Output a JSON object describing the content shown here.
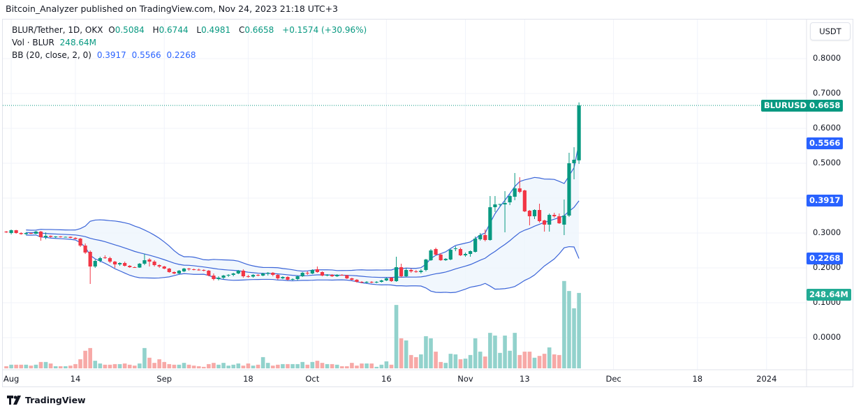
{
  "header": {
    "published": "Bitcoin_Analyzer published on TradingView.com, Nov 24, 2023 21:18 UTC+3"
  },
  "legend": {
    "symbol": "BLUR/Tether, 1D, OKX",
    "open_label": "O",
    "open": "0.5084",
    "high_label": "H",
    "high": "0.6744",
    "low_label": "L",
    "low": "0.4981",
    "close_label": "C",
    "close": "0.6658",
    "change": "+0.1574 (+30.96%)",
    "vol_label": "Vol · BLUR",
    "vol": "248.64M",
    "bb_label": "BB (20, close, 2, 0)",
    "bb_basis": "0.3917",
    "bb_upper": "0.5566",
    "bb_lower": "0.2268"
  },
  "price_axis": {
    "currency": "USDT",
    "ticks": [
      "0.8000",
      "0.7000",
      "0.6000",
      "0.5000",
      "0.3000",
      "0.2000",
      "0.1000",
      "0.0000"
    ],
    "tick_values": [
      0.8,
      0.7,
      0.6,
      0.5,
      0.3,
      0.2,
      0.1,
      0.0
    ],
    "last_price_symbol": "BLURUSDT",
    "last_price": "0.6658",
    "bb_upper_tag": "0.5566",
    "bb_basis_tag": "0.3917",
    "bb_lower_tag": "0.2268",
    "volume_tag": "248.64M"
  },
  "time_axis": {
    "ticks": [
      {
        "label": "Aug",
        "date": "2023-08-01"
      },
      {
        "label": "14",
        "date": "2023-08-14"
      },
      {
        "label": "Sep",
        "date": "2023-09-01"
      },
      {
        "label": "18",
        "date": "2023-09-18"
      },
      {
        "label": "Oct",
        "date": "2023-10-01"
      },
      {
        "label": "16",
        "date": "2023-10-16"
      },
      {
        "label": "Nov",
        "date": "2023-11-01"
      },
      {
        "label": "13",
        "date": "2023-11-13"
      },
      {
        "label": "Dec",
        "date": "2023-12-01"
      },
      {
        "label": "18",
        "date": "2023-12-18"
      },
      {
        "label": "2024",
        "date": "2024-01-01"
      }
    ]
  },
  "colors": {
    "up": "#089981",
    "down": "#f23645",
    "vol_up": "#92d2cc",
    "vol_down": "#f7a9a7",
    "bb_line": "#3a64d8",
    "bb_fill": "#eef5fd",
    "last_price_tag": "#089981",
    "bb_tag": "#2962ff",
    "volume_tag": "#22ab94"
  },
  "footer": {
    "brand": "TradingView"
  },
  "chart_data": {
    "type": "candlestick",
    "symbol": "BLUR/Tether, 1D, OKX",
    "ylim": [
      0.0,
      0.8
    ],
    "volume_unit": "M",
    "indicators": [
      {
        "name": "BB (20, close, 2, 0)",
        "last": {
          "basis": 0.3917,
          "upper": 0.5566,
          "lower": 0.2268
        }
      }
    ],
    "columns": [
      "date",
      "open",
      "high",
      "low",
      "close",
      "volume"
    ],
    "candles": [
      [
        "2023-07-31",
        0.304,
        0.306,
        0.3,
        0.302,
        7
      ],
      [
        "2023-08-01",
        0.3,
        0.31,
        0.296,
        0.308,
        12
      ],
      [
        "2023-08-02",
        0.308,
        0.309,
        0.298,
        0.3,
        12
      ],
      [
        "2023-08-03",
        0.3,
        0.302,
        0.295,
        0.297,
        12
      ],
      [
        "2023-08-04",
        0.297,
        0.302,
        0.295,
        0.3,
        12
      ],
      [
        "2023-08-05",
        0.3,
        0.301,
        0.297,
        0.298,
        9
      ],
      [
        "2023-08-06",
        0.298,
        0.306,
        0.297,
        0.304,
        12
      ],
      [
        "2023-08-07",
        0.304,
        0.306,
        0.278,
        0.288,
        21
      ],
      [
        "2023-08-08",
        0.288,
        0.302,
        0.282,
        0.292,
        21
      ],
      [
        "2023-08-09",
        0.292,
        0.293,
        0.287,
        0.289,
        16
      ],
      [
        "2023-08-10",
        0.289,
        0.291,
        0.286,
        0.29,
        7
      ],
      [
        "2023-08-11",
        0.29,
        0.291,
        0.287,
        0.289,
        7
      ],
      [
        "2023-08-12",
        0.289,
        0.29,
        0.287,
        0.289,
        7
      ],
      [
        "2023-08-13",
        0.289,
        0.29,
        0.285,
        0.286,
        9
      ],
      [
        "2023-08-14",
        0.286,
        0.288,
        0.282,
        0.283,
        14
      ],
      [
        "2023-08-15",
        0.284,
        0.286,
        0.26,
        0.264,
        30
      ],
      [
        "2023-08-16",
        0.264,
        0.27,
        0.24,
        0.244,
        58
      ],
      [
        "2023-08-17",
        0.246,
        0.25,
        0.154,
        0.204,
        67
      ],
      [
        "2023-08-18",
        0.204,
        0.224,
        0.2,
        0.22,
        25
      ],
      [
        "2023-08-19",
        0.22,
        0.232,
        0.216,
        0.228,
        16
      ],
      [
        "2023-08-20",
        0.23,
        0.236,
        0.226,
        0.228,
        12
      ],
      [
        "2023-08-21",
        0.228,
        0.232,
        0.214,
        0.218,
        12
      ],
      [
        "2023-08-22",
        0.218,
        0.22,
        0.2,
        0.21,
        14
      ],
      [
        "2023-08-23",
        0.21,
        0.216,
        0.206,
        0.214,
        14
      ],
      [
        "2023-08-24",
        0.214,
        0.218,
        0.204,
        0.206,
        16
      ],
      [
        "2023-08-25",
        0.206,
        0.208,
        0.2,
        0.202,
        12
      ],
      [
        "2023-08-26",
        0.202,
        0.204,
        0.2,
        0.201,
        9
      ],
      [
        "2023-08-27",
        0.201,
        0.214,
        0.2,
        0.212,
        16
      ],
      [
        "2023-08-28",
        0.212,
        0.24,
        0.208,
        0.222,
        67
      ],
      [
        "2023-08-29",
        0.224,
        0.228,
        0.204,
        0.218,
        35
      ],
      [
        "2023-08-30",
        0.218,
        0.222,
        0.204,
        0.208,
        18
      ],
      [
        "2023-08-31",
        0.208,
        0.21,
        0.2,
        0.204,
        30
      ],
      [
        "2023-09-01",
        0.204,
        0.206,
        0.196,
        0.198,
        21
      ],
      [
        "2023-09-02",
        0.198,
        0.2,
        0.186,
        0.188,
        14
      ],
      [
        "2023-09-03",
        0.188,
        0.19,
        0.182,
        0.184,
        12
      ],
      [
        "2023-09-04",
        0.184,
        0.194,
        0.182,
        0.192,
        12
      ],
      [
        "2023-09-05",
        0.19,
        0.2,
        0.188,
        0.198,
        18
      ],
      [
        "2023-09-06",
        0.198,
        0.2,
        0.192,
        0.196,
        12
      ],
      [
        "2023-09-07",
        0.196,
        0.198,
        0.193,
        0.195,
        9
      ],
      [
        "2023-09-08",
        0.195,
        0.198,
        0.192,
        0.194,
        7
      ],
      [
        "2023-09-09",
        0.194,
        0.196,
        0.19,
        0.192,
        5
      ],
      [
        "2023-09-10",
        0.192,
        0.194,
        0.176,
        0.178,
        14
      ],
      [
        "2023-09-11",
        0.178,
        0.184,
        0.164,
        0.168,
        18
      ],
      [
        "2023-09-12",
        0.168,
        0.176,
        0.164,
        0.172,
        12
      ],
      [
        "2023-09-13",
        0.172,
        0.18,
        0.168,
        0.178,
        18
      ],
      [
        "2023-09-14",
        0.178,
        0.182,
        0.174,
        0.18,
        9
      ],
      [
        "2023-09-15",
        0.18,
        0.186,
        0.176,
        0.184,
        12
      ],
      [
        "2023-09-16",
        0.184,
        0.194,
        0.182,
        0.192,
        16
      ],
      [
        "2023-09-17",
        0.192,
        0.196,
        0.172,
        0.176,
        9
      ],
      [
        "2023-09-18",
        0.176,
        0.18,
        0.172,
        0.175,
        16
      ],
      [
        "2023-09-19",
        0.175,
        0.182,
        0.172,
        0.18,
        9
      ],
      [
        "2023-09-20",
        0.18,
        0.182,
        0.176,
        0.178,
        12
      ],
      [
        "2023-09-21",
        0.178,
        0.186,
        0.176,
        0.184,
        37
      ],
      [
        "2023-09-22",
        0.184,
        0.188,
        0.178,
        0.186,
        18
      ],
      [
        "2023-09-23",
        0.186,
        0.188,
        0.176,
        0.18,
        9
      ],
      [
        "2023-09-24",
        0.18,
        0.182,
        0.166,
        0.17,
        12
      ],
      [
        "2023-09-25",
        0.17,
        0.176,
        0.168,
        0.174,
        14
      ],
      [
        "2023-09-26",
        0.174,
        0.176,
        0.164,
        0.166,
        14
      ],
      [
        "2023-09-27",
        0.166,
        0.17,
        0.164,
        0.168,
        14
      ],
      [
        "2023-09-28",
        0.168,
        0.178,
        0.164,
        0.176,
        14
      ],
      [
        "2023-09-29",
        0.176,
        0.188,
        0.174,
        0.186,
        21
      ],
      [
        "2023-09-30",
        0.186,
        0.19,
        0.18,
        0.184,
        12
      ],
      [
        "2023-10-01",
        0.184,
        0.196,
        0.182,
        0.194,
        21
      ],
      [
        "2023-10-02",
        0.196,
        0.204,
        0.186,
        0.188,
        25
      ],
      [
        "2023-10-03",
        0.188,
        0.19,
        0.176,
        0.178,
        18
      ],
      [
        "2023-10-04",
        0.178,
        0.182,
        0.176,
        0.18,
        14
      ],
      [
        "2023-10-05",
        0.18,
        0.182,
        0.174,
        0.176,
        14
      ],
      [
        "2023-10-06",
        0.176,
        0.182,
        0.174,
        0.18,
        12
      ],
      [
        "2023-10-07",
        0.18,
        0.182,
        0.178,
        0.179,
        7
      ],
      [
        "2023-10-08",
        0.179,
        0.18,
        0.168,
        0.17,
        7
      ],
      [
        "2023-10-09",
        0.17,
        0.172,
        0.164,
        0.166,
        18
      ],
      [
        "2023-10-10",
        0.166,
        0.168,
        0.158,
        0.16,
        9
      ],
      [
        "2023-10-11",
        0.16,
        0.162,
        0.156,
        0.158,
        16
      ],
      [
        "2023-10-12",
        0.158,
        0.162,
        0.156,
        0.16,
        16
      ],
      [
        "2023-10-13",
        0.16,
        0.162,
        0.156,
        0.159,
        16
      ],
      [
        "2023-10-14",
        0.159,
        0.162,
        0.156,
        0.16,
        5
      ],
      [
        "2023-10-15",
        0.16,
        0.166,
        0.158,
        0.164,
        12
      ],
      [
        "2023-10-16",
        0.164,
        0.172,
        0.162,
        0.17,
        23
      ],
      [
        "2023-10-17",
        0.172,
        0.174,
        0.16,
        0.162,
        12
      ],
      [
        "2023-10-18",
        0.162,
        0.232,
        0.16,
        0.202,
        209
      ],
      [
        "2023-10-19",
        0.202,
        0.212,
        0.172,
        0.176,
        99
      ],
      [
        "2023-10-20",
        0.176,
        0.2,
        0.174,
        0.194,
        92
      ],
      [
        "2023-10-21",
        0.194,
        0.198,
        0.186,
        0.19,
        44
      ],
      [
        "2023-10-22",
        0.19,
        0.194,
        0.186,
        0.188,
        37
      ],
      [
        "2023-10-23",
        0.188,
        0.196,
        0.184,
        0.192,
        46
      ],
      [
        "2023-10-24",
        0.194,
        0.226,
        0.19,
        0.224,
        106
      ],
      [
        "2023-10-25",
        0.222,
        0.254,
        0.22,
        0.25,
        99
      ],
      [
        "2023-10-26",
        0.254,
        0.258,
        0.236,
        0.238,
        55
      ],
      [
        "2023-10-27",
        0.238,
        0.242,
        0.22,
        0.222,
        21
      ],
      [
        "2023-10-28",
        0.222,
        0.228,
        0.22,
        0.226,
        18
      ],
      [
        "2023-10-29",
        0.224,
        0.254,
        0.222,
        0.252,
        48
      ],
      [
        "2023-10-30",
        0.254,
        0.262,
        0.248,
        0.256,
        46
      ],
      [
        "2023-10-31",
        0.254,
        0.258,
        0.234,
        0.236,
        30
      ],
      [
        "2023-11-01",
        0.236,
        0.244,
        0.232,
        0.24,
        32
      ],
      [
        "2023-11-02",
        0.24,
        0.25,
        0.232,
        0.248,
        44
      ],
      [
        "2023-11-03",
        0.246,
        0.29,
        0.244,
        0.284,
        99
      ],
      [
        "2023-11-04",
        0.282,
        0.3,
        0.278,
        0.294,
        55
      ],
      [
        "2023-11-05",
        0.294,
        0.31,
        0.276,
        0.28,
        39
      ],
      [
        "2023-11-06",
        0.28,
        0.406,
        0.278,
        0.374,
        117
      ],
      [
        "2023-11-07",
        0.374,
        0.406,
        0.36,
        0.382,
        108
      ],
      [
        "2023-11-08",
        0.382,
        0.384,
        0.376,
        0.383,
        51
      ],
      [
        "2023-11-09",
        0.382,
        0.42,
        0.302,
        0.386,
        108
      ],
      [
        "2023-11-10",
        0.388,
        0.41,
        0.38,
        0.406,
        58
      ],
      [
        "2023-11-11",
        0.404,
        0.472,
        0.394,
        0.428,
        117
      ],
      [
        "2023-11-12",
        0.428,
        0.46,
        0.414,
        0.418,
        44
      ],
      [
        "2023-11-13",
        0.422,
        0.424,
        0.36,
        0.362,
        55
      ],
      [
        "2023-11-14",
        0.364,
        0.366,
        0.322,
        0.348,
        55
      ],
      [
        "2023-11-15",
        0.348,
        0.368,
        0.34,
        0.366,
        35
      ],
      [
        "2023-11-16",
        0.366,
        0.384,
        0.33,
        0.334,
        41
      ],
      [
        "2023-11-17",
        0.336,
        0.338,
        0.304,
        0.324,
        48
      ],
      [
        "2023-11-18",
        0.324,
        0.356,
        0.304,
        0.352,
        69
      ],
      [
        "2023-11-19",
        0.352,
        0.358,
        0.344,
        0.348,
        46
      ],
      [
        "2023-11-20",
        0.348,
        0.356,
        0.326,
        0.328,
        44
      ],
      [
        "2023-11-21",
        0.324,
        0.396,
        0.294,
        0.35,
        288
      ],
      [
        "2023-11-22",
        0.35,
        0.53,
        0.346,
        0.5,
        255
      ],
      [
        "2023-11-23",
        0.5,
        0.546,
        0.454,
        0.51,
        198
      ],
      [
        "2023-11-24",
        0.5084,
        0.6744,
        0.4981,
        0.6658,
        248.64
      ]
    ]
  }
}
